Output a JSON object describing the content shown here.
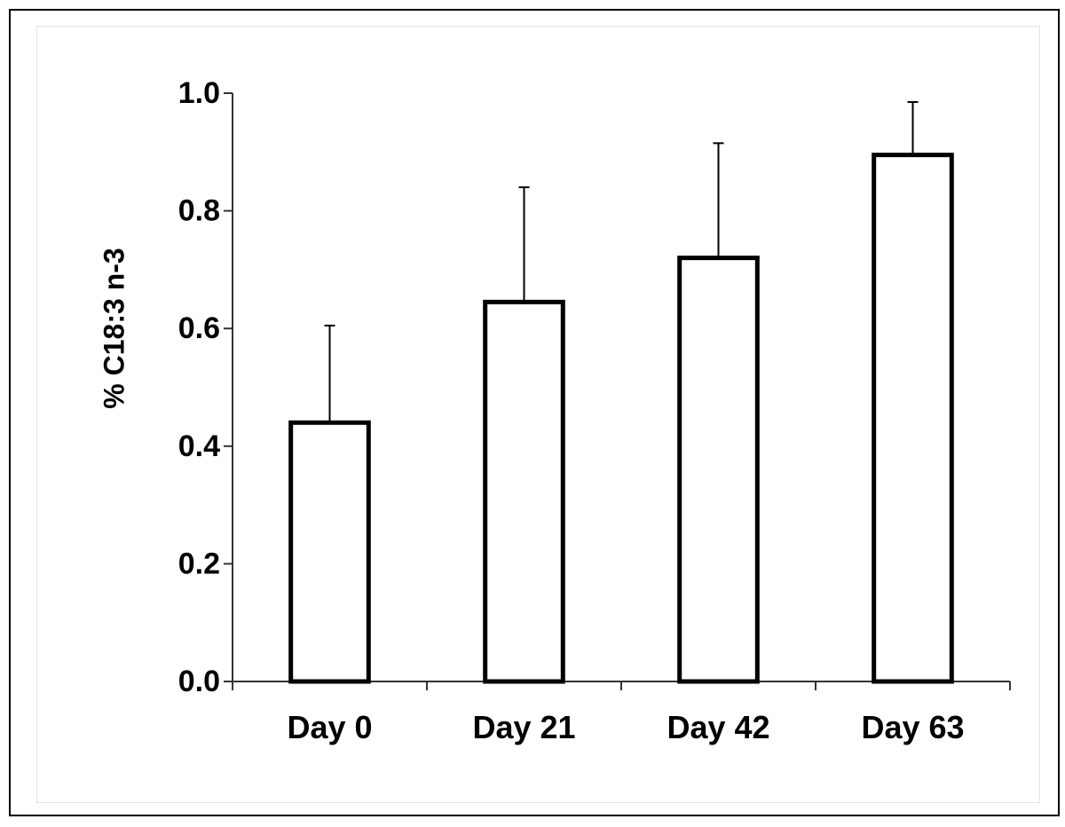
{
  "chart_data": {
    "type": "bar",
    "title": "",
    "xlabel": "",
    "ylabel": "% C18:3 n-3",
    "categories": [
      "Day 0",
      "Day 21",
      "Day 42",
      "Day 63"
    ],
    "values": [
      0.44,
      0.645,
      0.72,
      0.895
    ],
    "error_upper": [
      0.165,
      0.195,
      0.195,
      0.09
    ],
    "ylim": [
      0,
      1.0
    ],
    "yticks": [
      "0.0",
      "0.2",
      "0.4",
      "0.6",
      "0.8",
      "1.0"
    ],
    "grid": false,
    "legend": "none",
    "colors": {
      "bar_fill": "#ffffff",
      "bar_stroke": "#000000",
      "axis": "#333333"
    }
  }
}
